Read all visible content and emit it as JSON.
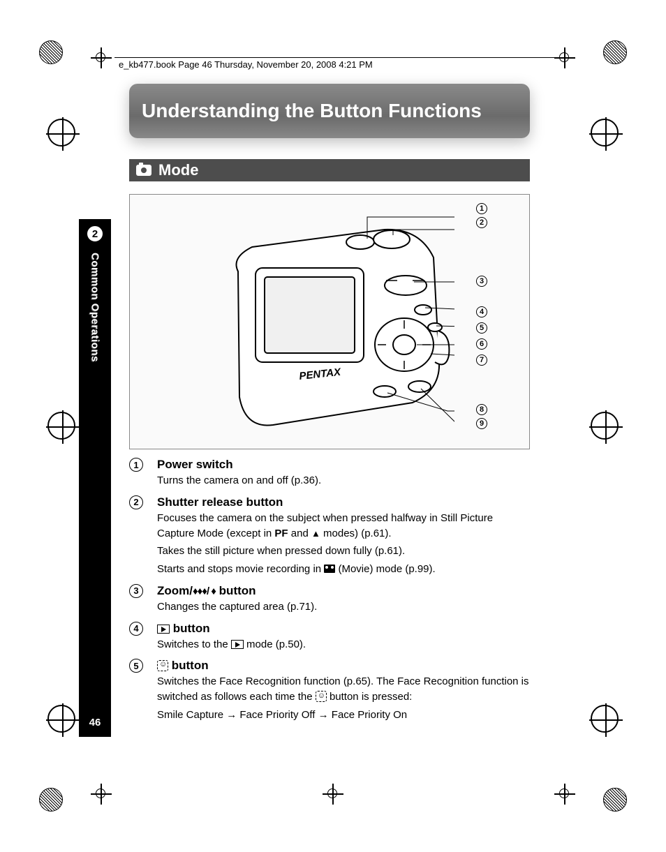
{
  "header_text": "e_kb477.book  Page 46  Thursday, November 20, 2008  4:21 PM",
  "chapter_title": "Understanding the Button Functions",
  "section_title": "Mode",
  "side_tab": {
    "chapter_num": "2",
    "label": "Common Operations",
    "page_num": "46"
  },
  "camera_brand": "PENTAX",
  "callouts": [
    "1",
    "2",
    "3",
    "4",
    "5",
    "6",
    "7",
    "8",
    "9"
  ],
  "items": [
    {
      "num": "1",
      "title": "Power switch",
      "desc_lines": [
        "Turns the camera on and off (p.36)."
      ]
    },
    {
      "num": "2",
      "title": "Shutter release button",
      "desc_lines": [
        "Focuses the camera on the subject when pressed halfway in Still Picture Capture Mode (except in {PF} and {TREE} modes) (p.61).",
        "Takes the still picture when pressed down fully (p.61).",
        "Starts and stops movie recording in {MOVIE} (Movie) mode (p.99)."
      ]
    },
    {
      "num": "3",
      "title": "Zoom/{ZOOM} button",
      "desc_lines": [
        "Changes the captured area (p.71)."
      ]
    },
    {
      "num": "4",
      "title": "{PLAY} button",
      "desc_lines": [
        "Switches to the {PLAY} mode (p.50)."
      ]
    },
    {
      "num": "5",
      "title": "{FACE} button",
      "desc_lines": [
        "Switches the Face Recognition function (p.65). The Face Recognition function is switched as follows each time the {FACE} button is pressed:",
        "Smile Capture → Face Priority Off → Face Priority On"
      ]
    }
  ],
  "colors": {
    "title_bg_start": "#8a8a8a",
    "title_bg_end": "#6b6b6b",
    "section_bg": "#4d4d4d",
    "text": "#000000",
    "bg": "#ffffff"
  }
}
